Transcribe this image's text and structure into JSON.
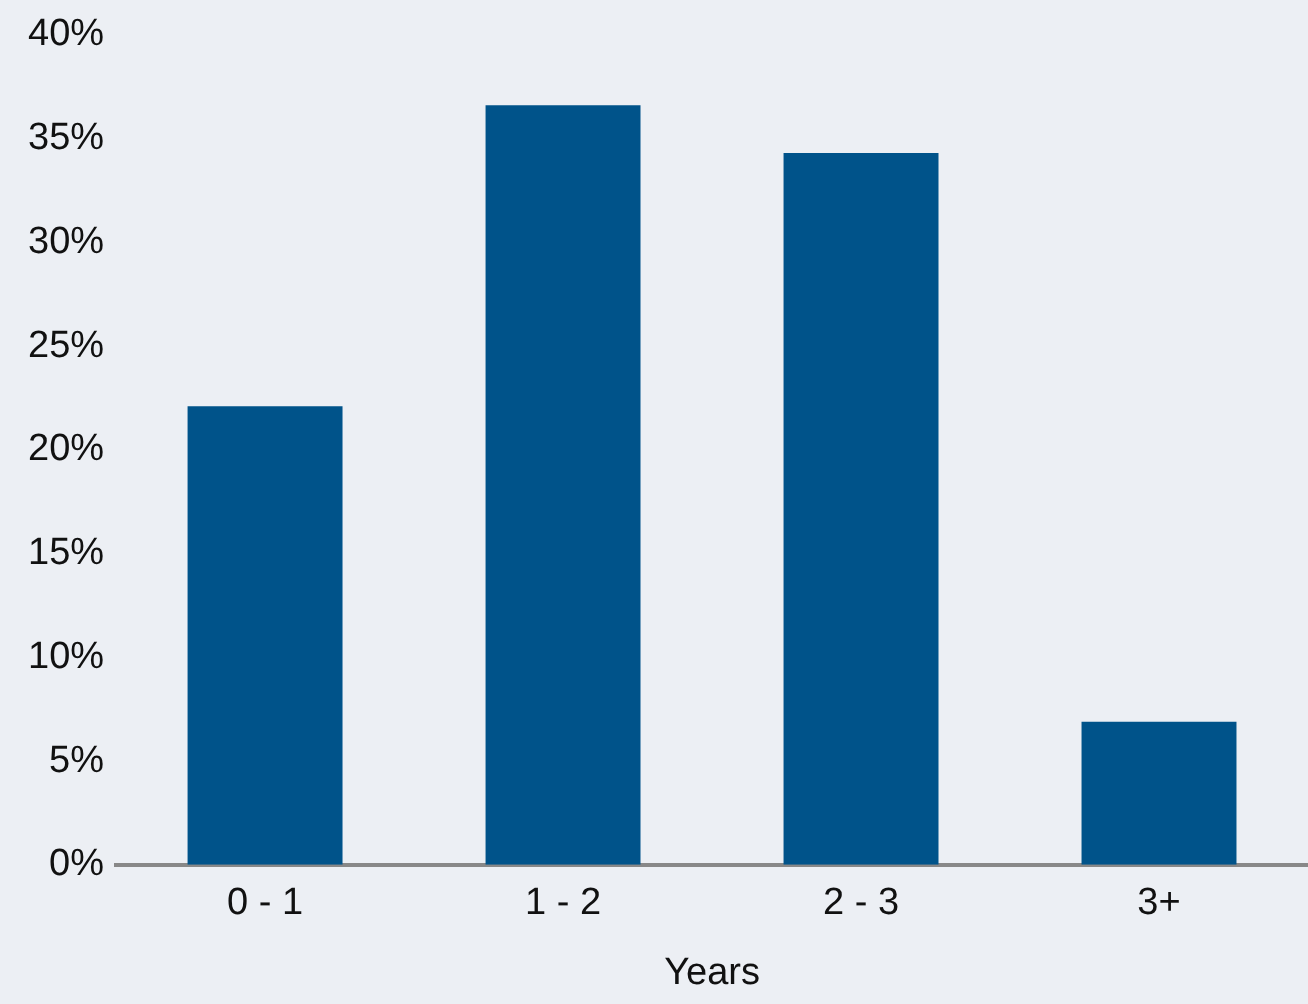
{
  "chart_data": {
    "type": "bar",
    "xlabel": "Years",
    "categories": [
      "0 - 1",
      "1 - 2",
      "2 - 3",
      "3+"
    ],
    "values": [
      22.1,
      36.6,
      34.3,
      6.9
    ],
    "color": "#00538a",
    "ylim": [
      0,
      40
    ],
    "yticks": [
      {
        "value": 0,
        "label": "0%"
      },
      {
        "value": 5,
        "label": "5%"
      },
      {
        "value": 10,
        "label": "10%"
      },
      {
        "value": 15,
        "label": "15%"
      },
      {
        "value": 20,
        "label": "20%"
      },
      {
        "value": 25,
        "label": "25%"
      },
      {
        "value": 30,
        "label": "30%"
      },
      {
        "value": 35,
        "label": "35%"
      },
      {
        "value": 40,
        "label": "40%"
      }
    ],
    "grid": false,
    "legend": false
  }
}
